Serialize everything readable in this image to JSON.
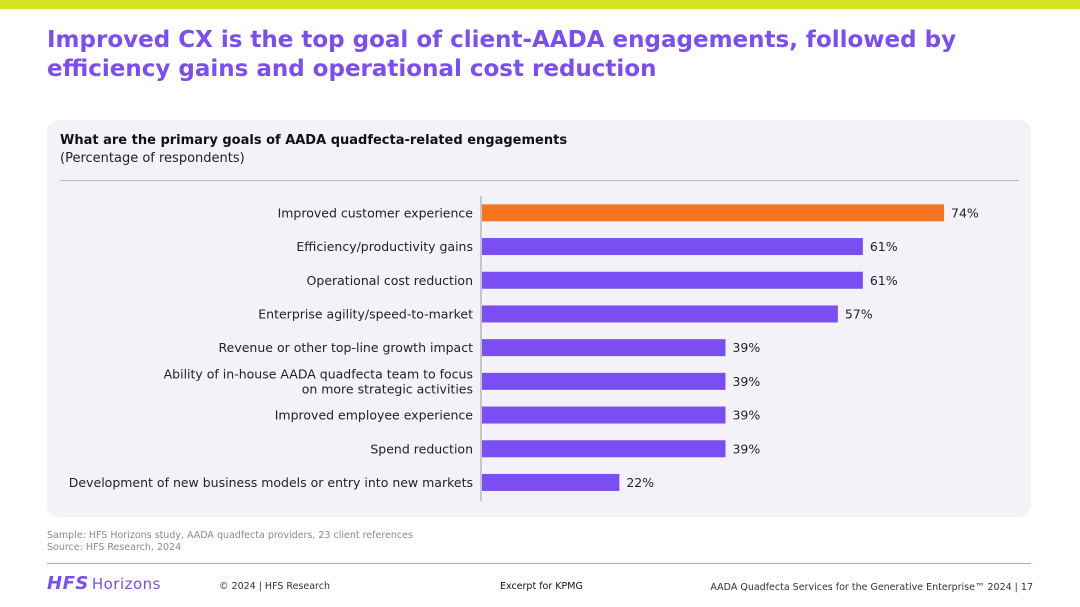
{
  "slide": {
    "title": "Improved CX is the top goal of client-AADA engagements, followed by efficiency gains and operational cost reduction"
  },
  "chart_data": {
    "type": "bar",
    "orientation": "horizontal",
    "title": "What are the primary goals of AADA quadfecta-related engagements",
    "subtitle": "(Percentage of respondents)",
    "categories": [
      [
        "Improved customer experience"
      ],
      [
        "Efficiency/productivity gains"
      ],
      [
        "Operational cost reduction"
      ],
      [
        "Enterprise agility/speed-to-market"
      ],
      [
        "Revenue or other top-line growth impact"
      ],
      [
        "Ability of in-house AADA quadfecta team to focus",
        "on more strategic activities"
      ],
      [
        "Improved employee experience"
      ],
      [
        "Spend reduction"
      ],
      [
        "Development of new business models or entry into new markets"
      ]
    ],
    "values": [
      74,
      61,
      61,
      57,
      39,
      39,
      39,
      39,
      22
    ],
    "value_suffix": "%",
    "xlim": [
      0,
      100
    ],
    "highlight_index": 0,
    "colors": {
      "highlight": "#f6731f",
      "default": "#7a4ef2"
    }
  },
  "footer": {
    "sample": "Sample: HFS Horizons study, AADA quadfecta providers, 23 client references",
    "source": "Source: HFS Research, 2024",
    "logo_hfs": "HFS",
    "logo_horizons": "Horizons",
    "copyright": "© 2024 | HFS Research",
    "excerpt": "Excerpt for KPMG",
    "report": "AADA Quadfecta Services for the Generative Enterprise™ 2024 | 17"
  }
}
